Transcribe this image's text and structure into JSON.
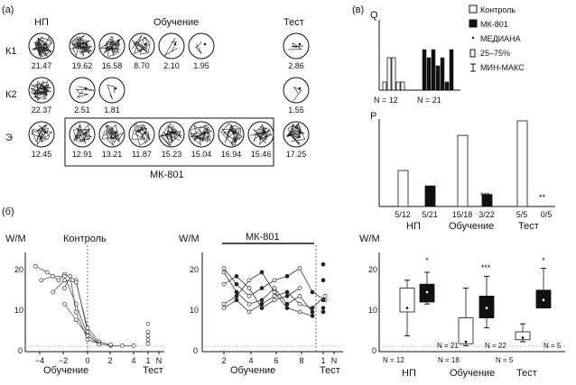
{
  "panels": {
    "a": {
      "label": "(а)",
      "col_headers": {
        "np": "НП",
        "training": "Обучение",
        "test": "Тест"
      },
      "rows": [
        {
          "name": "К1",
          "np": "21.47",
          "training": [
            "19.62",
            "16.58",
            "8.70",
            "2.10",
            "1.95"
          ],
          "test": "2.86"
        },
        {
          "name": "К2",
          "np": "22.37",
          "training": [
            "2.51",
            "1.81"
          ],
          "test": "1.55"
        },
        {
          "name": "Э",
          "np": "12.45",
          "training": [
            "12.91",
            "13.21",
            "11.87",
            "15.23",
            "15.04",
            "16.94",
            "15.46"
          ],
          "test": "17.25"
        }
      ],
      "box_label": "МК-801"
    },
    "v": {
      "label": "(в)",
      "q_axis": "Q",
      "q_groups": [
        "N = 12",
        "N = 21"
      ],
      "q_values_control": [
        1,
        4,
        4,
        1,
        1
      ],
      "q_values_mk": [
        5,
        4,
        5,
        3,
        4,
        1,
        5
      ],
      "legend": [
        "Контроль",
        "МК-801",
        "МЕДИАНА",
        "25–75%",
        "МИН-МАКС"
      ],
      "p_axis": "P",
      "p_ticks": [
        "5/12",
        "5/21",
        "15/18",
        "3/22",
        "5/5",
        "0/5"
      ],
      "p_groups": [
        "НП",
        "Обучение",
        "Тест"
      ],
      "p_values": [
        0.42,
        0.24,
        0.83,
        0.14,
        1.0,
        0.0
      ],
      "p_sig": {
        "training": "***",
        "test": "**"
      }
    },
    "b": {
      "label": "(б)",
      "y_axis": "W/M",
      "control_title": "Контроль",
      "mk_title": "МК-801",
      "x_label": "Обучение",
      "test_label": "Тест",
      "control_x_ticks": [
        "−4",
        "−2",
        "0",
        "2",
        "4",
        "1",
        "N"
      ],
      "mk_x_ticks": [
        "2",
        "4",
        "6",
        "8",
        "1",
        "N"
      ],
      "y_ticks": [
        "0",
        "10",
        "20"
      ],
      "box_groups": [
        "НП",
        "Обучение",
        "Тест"
      ],
      "box_n": [
        "N = 12",
        "N = 21",
        "N = 18",
        "N = 22",
        "N = 5",
        "N = 5"
      ],
      "box_sig": [
        "*",
        "***",
        "*"
      ],
      "box_stats": [
        {
          "min": 4,
          "q1": 10,
          "median": 11,
          "q3": 16,
          "max": 18
        },
        {
          "min": 12,
          "q1": 12.5,
          "median": 15,
          "q3": 17,
          "max": 20
        },
        {
          "min": 1.5,
          "q1": 2,
          "median": 2.5,
          "q3": 8.5,
          "max": 16
        },
        {
          "min": 6,
          "q1": 8.5,
          "median": 11,
          "q3": 14,
          "max": 19
        },
        {
          "min": 2.5,
          "q1": 3,
          "median": 3.5,
          "q3": 5,
          "max": 7
        },
        {
          "min": 11,
          "q1": 11,
          "median": 13,
          "q3": 15.5,
          "max": 21
        }
      ]
    }
  }
}
